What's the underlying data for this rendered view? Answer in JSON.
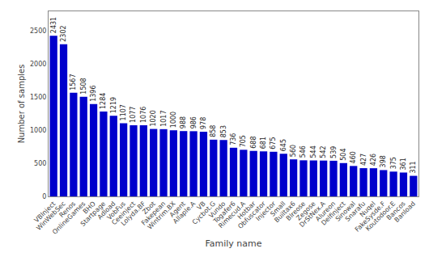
{
  "chart_data": {
    "type": "bar",
    "categories": [
      "VBInject",
      "WinWebSec",
      "Renos",
      "OnlineGames",
      "BHO",
      "Startpage",
      "Adload",
      "VobFus",
      "Ceeinject",
      "Lolyda.BF",
      "Zbot",
      "Fakepean",
      "Wintrim.BX",
      "Agent",
      "Allaple.A",
      "VB",
      "Cycbot.G",
      "Vundo",
      "Togafer6",
      "Rimecud.A",
      "Hotbar",
      "Obfuscator",
      "Injector",
      "Small",
      "Builtax6",
      "Blreose",
      "Zegose",
      "DrStNex.A",
      "Alureon",
      "Delfinject",
      "Sinowal",
      "Snarafu",
      "Nuqel",
      "FakeSysde.F",
      "Koutodoor.E",
      "Bancos",
      "Banload"
    ],
    "values": [
      2431,
      2302,
      1567,
      1508,
      1396,
      1284,
      1219,
      1107,
      1077,
      1076,
      1020,
      1017,
      1000,
      988,
      986,
      978,
      858,
      853,
      736,
      705,
      688,
      681,
      675,
      645,
      560,
      546,
      544,
      542,
      539,
      504,
      460,
      427,
      426,
      398,
      375,
      361,
      311
    ],
    "color": "#0000CC",
    "xlabel": "Family name",
    "ylabel": "Number of samples",
    "ylim": [
      0,
      2800
    ],
    "yticks": [
      0,
      500,
      1000,
      1500,
      2000,
      2500
    ],
    "data_labels": true,
    "grid": false
  }
}
